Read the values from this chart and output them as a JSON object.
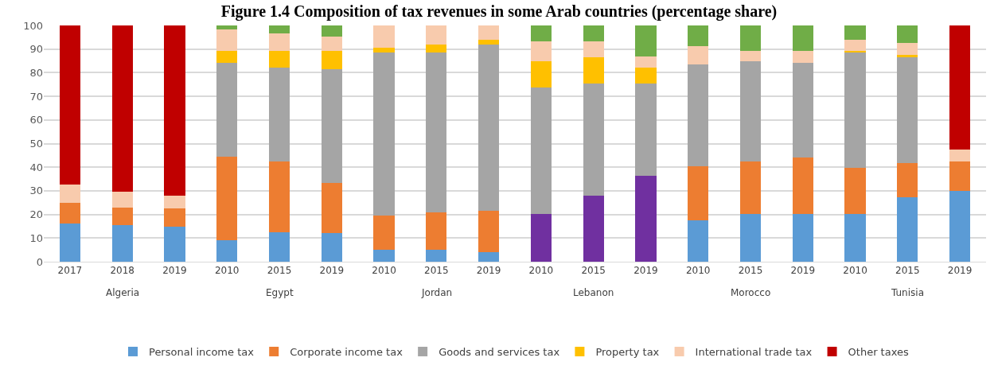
{
  "chart_data": {
    "type": "bar",
    "stacked": true,
    "title": "Figure 1.4 Composition of tax revenues in some Arab countries (percentage share)",
    "categories": [
      "2017",
      "2018",
      "2019",
      "2010",
      "2015",
      "2019",
      "2010",
      "2015",
      "2019",
      "2010",
      "2015",
      "2019",
      "2010",
      "2015",
      "2019",
      "2010",
      "2015",
      "2019"
    ],
    "annotations": [
      "Algeria",
      "Egypt",
      "Jordan",
      "Lebanon",
      "Morocco",
      "Tunisia"
    ],
    "series": [
      {
        "name": "Personal income tax",
        "color": "#5b9bd5",
        "colors": [
          "#5b9bd5",
          "#5b9bd5",
          "#5b9bd5",
          "#5b9bd5",
          "#5b9bd5",
          "#5b9bd5",
          "#5b9bd5",
          "#5b9bd5",
          "#5b9bd5",
          "#7030a0",
          "#7030a0",
          "#7030a0",
          "#5b9bd5",
          "#5b9bd5",
          "#5b9bd5",
          "#5b9bd5",
          "#5b9bd5",
          "#5b9bd5"
        ],
        "values": [
          16.1,
          15.4,
          14.8,
          9.2,
          12.6,
          12.0,
          4.9,
          4.9,
          4.2,
          20.3,
          27.9,
          36.4,
          17.6,
          20.3,
          20.3,
          20.3,
          27.4,
          30.1
        ]
      },
      {
        "name": "Corporate income tax",
        "color": "#ed7d31",
        "values": [
          8.9,
          7.6,
          7.6,
          35.4,
          29.9,
          21.5,
          14.7,
          16.1,
          17.4,
          0,
          0,
          0,
          22.9,
          22.2,
          23.7,
          19.6,
          14.4,
          12.4
        ]
      },
      {
        "name": "Goods and services tax",
        "color": "#a5a5a5",
        "values": [
          0,
          0,
          0,
          39.6,
          39.6,
          48.0,
          68.8,
          67.4,
          70.2,
          53.6,
          47.4,
          38.9,
          43.0,
          42.5,
          40.2,
          48.5,
          44.6,
          0
        ]
      },
      {
        "name": "Property tax",
        "color": "#ffc000",
        "values": [
          0,
          0,
          0,
          4.9,
          7.0,
          7.6,
          2.1,
          3.4,
          2.1,
          11.1,
          11.1,
          6.8,
          0,
          0,
          0,
          0.7,
          1.3,
          0
        ]
      },
      {
        "name": "International trade tax",
        "color": "#f8cbad",
        "values": [
          7.6,
          6.6,
          5.6,
          9.1,
          7.7,
          6.2,
          9.5,
          8.2,
          6.1,
          8.3,
          6.9,
          4.9,
          7.8,
          4.1,
          4.9,
          4.9,
          4.9,
          5.0
        ]
      },
      {
        "name": "Other taxes",
        "color": "#70ad47",
        "colors": [
          "#c00000",
          "#c00000",
          "#c00000",
          "#70ad47",
          "#70ad47",
          "#70ad47",
          "#70ad47",
          "#70ad47",
          "#70ad47",
          "#70ad47",
          "#70ad47",
          "#70ad47",
          "#70ad47",
          "#70ad47",
          "#70ad47",
          "#70ad47",
          "#70ad47",
          "#c00000"
        ],
        "values": [
          67.4,
          70.4,
          72.0,
          1.8,
          3.2,
          4.7,
          0,
          0,
          0,
          6.7,
          6.7,
          13.0,
          8.7,
          10.9,
          10.9,
          6.0,
          7.4,
          52.5
        ]
      }
    ],
    "ylim": [
      0,
      100
    ],
    "yticks": [
      0,
      10,
      20,
      30,
      40,
      50,
      60,
      70,
      80,
      90,
      100
    ],
    "grid": "y",
    "legend": "bottom"
  }
}
